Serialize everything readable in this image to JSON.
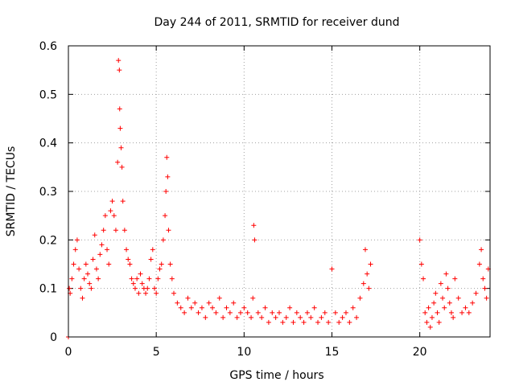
{
  "chart_data": {
    "type": "scatter",
    "title": "Day 244 of 2011, SRMTID for receiver dund",
    "xlabel": "GPS time / hours",
    "ylabel": "SRMTID / TECUs",
    "xlim": [
      0,
      24
    ],
    "ylim": [
      0,
      0.6
    ],
    "xticks": [
      0,
      5,
      10,
      15,
      20
    ],
    "yticks": [
      0,
      0.1,
      0.2,
      0.3,
      0.4,
      0.5,
      0.6
    ],
    "xtick_labels": [
      "0",
      "5",
      "10",
      "15",
      "20"
    ],
    "ytick_labels": [
      "0",
      "0.1",
      "0.2",
      "0.3",
      "0.4",
      "0.5",
      "0.6"
    ],
    "grid": true,
    "marker": "+",
    "color": "#ff0000",
    "series": [
      {
        "name": "SRMTID",
        "x": [
          0.0,
          0.05,
          0.1,
          0.2,
          0.3,
          0.4,
          0.5,
          0.6,
          0.7,
          0.8,
          0.9,
          1.0,
          1.1,
          1.2,
          1.3,
          1.4,
          1.5,
          1.6,
          1.7,
          1.8,
          1.9,
          2.0,
          2.1,
          2.2,
          2.3,
          2.4,
          2.5,
          2.6,
          2.7,
          2.8,
          2.85,
          2.9,
          2.92,
          2.95,
          3.0,
          3.05,
          3.1,
          3.2,
          3.3,
          3.4,
          3.5,
          3.6,
          3.7,
          3.8,
          3.9,
          4.0,
          4.1,
          4.2,
          4.3,
          4.4,
          4.5,
          4.6,
          4.7,
          4.8,
          4.9,
          5.0,
          5.1,
          5.2,
          5.3,
          5.4,
          5.5,
          5.55,
          5.6,
          5.65,
          5.7,
          5.8,
          5.9,
          6.0,
          6.2,
          6.4,
          6.6,
          6.8,
          7.0,
          7.2,
          7.4,
          7.6,
          7.8,
          8.0,
          8.2,
          8.4,
          8.6,
          8.8,
          9.0,
          9.2,
          9.4,
          9.6,
          9.8,
          10.0,
          10.2,
          10.4,
          10.5,
          10.55,
          10.6,
          10.8,
          11.0,
          11.2,
          11.4,
          11.6,
          11.8,
          12.0,
          12.2,
          12.4,
          12.6,
          12.8,
          13.0,
          13.2,
          13.4,
          13.6,
          13.8,
          14.0,
          14.2,
          14.4,
          14.6,
          14.8,
          15.0,
          15.2,
          15.4,
          15.6,
          15.8,
          16.0,
          16.2,
          16.4,
          16.6,
          16.8,
          16.9,
          17.0,
          17.1,
          17.2,
          20.0,
          20.1,
          20.2,
          20.3,
          20.4,
          20.5,
          20.6,
          20.7,
          20.8,
          20.9,
          21.0,
          21.1,
          21.2,
          21.3,
          21.4,
          21.5,
          21.6,
          21.7,
          21.8,
          21.9,
          22.0,
          22.2,
          22.4,
          22.6,
          22.8,
          23.0,
          23.2,
          23.4,
          23.5,
          23.6,
          23.7,
          23.8,
          23.9
        ],
        "y": [
          0.0,
          0.1,
          0.09,
          0.12,
          0.15,
          0.18,
          0.2,
          0.14,
          0.1,
          0.08,
          0.12,
          0.15,
          0.13,
          0.11,
          0.1,
          0.16,
          0.21,
          0.14,
          0.12,
          0.17,
          0.19,
          0.22,
          0.25,
          0.18,
          0.15,
          0.26,
          0.28,
          0.25,
          0.22,
          0.36,
          0.57,
          0.55,
          0.47,
          0.43,
          0.39,
          0.35,
          0.28,
          0.22,
          0.18,
          0.16,
          0.15,
          0.12,
          0.11,
          0.1,
          0.12,
          0.09,
          0.13,
          0.11,
          0.1,
          0.09,
          0.1,
          0.12,
          0.16,
          0.18,
          0.1,
          0.09,
          0.12,
          0.14,
          0.15,
          0.2,
          0.25,
          0.3,
          0.37,
          0.33,
          0.22,
          0.15,
          0.12,
          0.09,
          0.07,
          0.06,
          0.05,
          0.08,
          0.06,
          0.07,
          0.05,
          0.06,
          0.04,
          0.07,
          0.06,
          0.05,
          0.08,
          0.04,
          0.06,
          0.05,
          0.07,
          0.04,
          0.05,
          0.06,
          0.05,
          0.04,
          0.08,
          0.23,
          0.2,
          0.05,
          0.04,
          0.06,
          0.03,
          0.05,
          0.04,
          0.05,
          0.03,
          0.04,
          0.06,
          0.03,
          0.05,
          0.04,
          0.03,
          0.05,
          0.04,
          0.06,
          0.03,
          0.04,
          0.05,
          0.03,
          0.14,
          0.05,
          0.03,
          0.04,
          0.05,
          0.03,
          0.06,
          0.04,
          0.08,
          0.11,
          0.18,
          0.13,
          0.1,
          0.15,
          0.2,
          0.15,
          0.12,
          0.05,
          0.03,
          0.06,
          0.02,
          0.04,
          0.07,
          0.09,
          0.05,
          0.03,
          0.11,
          0.08,
          0.06,
          0.13,
          0.1,
          0.07,
          0.05,
          0.04,
          0.12,
          0.08,
          0.05,
          0.06,
          0.05,
          0.07,
          0.09,
          0.15,
          0.18,
          0.12,
          0.1,
          0.08,
          0.14
        ]
      }
    ]
  }
}
